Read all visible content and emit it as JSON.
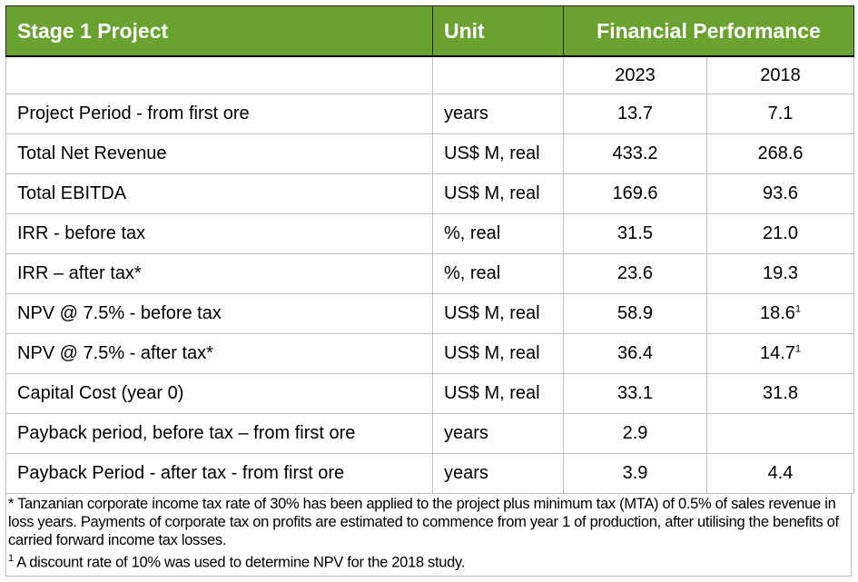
{
  "header": {
    "project": "Stage 1 Project",
    "unit": "Unit",
    "performance": "Financial Performance"
  },
  "years": [
    "2023",
    "2018"
  ],
  "rows": [
    {
      "label": "Project Period - from first ore",
      "unit": "years",
      "v2023": "13.7",
      "v2018": "7.1",
      "note2018": ""
    },
    {
      "label": "Total Net Revenue",
      "unit": "US$ M, real",
      "v2023": "433.2",
      "v2018": "268.6",
      "note2018": ""
    },
    {
      "label": "Total EBITDA",
      "unit": "US$ M, real",
      "v2023": "169.6",
      "v2018": "93.6",
      "note2018": ""
    },
    {
      "label": "IRR - before tax",
      "unit": "%, real",
      "v2023": "31.5",
      "v2018": "21.0",
      "note2018": ""
    },
    {
      "label": "IRR – after tax*",
      "unit": "%, real",
      "v2023": "23.6",
      "v2018": "19.3",
      "note2018": ""
    },
    {
      "label": "NPV @ 7.5% - before tax",
      "unit": "US$ M, real",
      "v2023": "58.9",
      "v2018": "18.6",
      "note2018": "1"
    },
    {
      "label": "NPV @ 7.5% - after tax*",
      "unit": "US$ M, real",
      "v2023": "36.4",
      "v2018": "14.7",
      "note2018": "1"
    },
    {
      "label": "Capital Cost (year 0)",
      "unit": "US$ M, real",
      "v2023": "33.1",
      "v2018": "31.8",
      "note2018": ""
    },
    {
      "label": "Payback period, before tax – from first ore",
      "unit": "years",
      "v2023": "2.9",
      "v2018": "",
      "note2018": ""
    },
    {
      "label": "Payback Period - after tax - from first ore",
      "unit": "years",
      "v2023": "3.9",
      "v2018": "4.4",
      "note2018": ""
    }
  ],
  "footnotes": {
    "star": "* Tanzanian corporate income tax rate of 30% has been applied to the project plus minimum tax (MTA) of 0.5% of sales revenue in loss years. Payments of corporate tax on profits are estimated to commence from year 1 of production, after utilising the benefits of carried forward income tax losses.",
    "one_mark": "1",
    "one": " A discount rate of 10% was used to determine NPV for the 2018 study."
  },
  "colors": {
    "header_bg": "#6aa230",
    "header_text": "#ffffff"
  }
}
